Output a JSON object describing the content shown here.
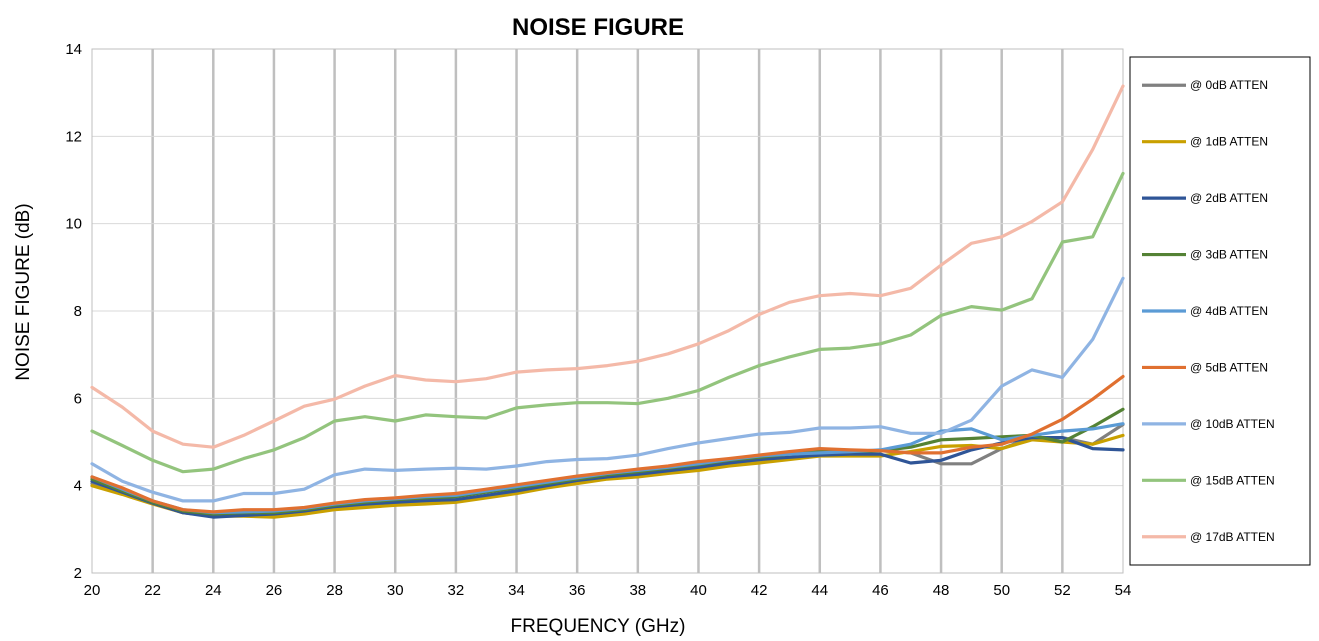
{
  "chart_data": {
    "type": "line",
    "title": "NOISE FIGURE",
    "xlabel": "FREQUENCY (GHz)",
    "ylabel": "NOISE FIGURE (dB)",
    "xlim": [
      20,
      54
    ],
    "ylim": [
      2,
      14
    ],
    "x_ticks": [
      20,
      22,
      24,
      26,
      28,
      30,
      32,
      34,
      36,
      38,
      40,
      42,
      44,
      46,
      48,
      50,
      52,
      54
    ],
    "y_ticks": [
      2,
      4,
      6,
      8,
      10,
      12,
      14
    ],
    "vertical_grid": true,
    "horizontal_grid": true,
    "legend_position": "right",
    "x": [
      20,
      21,
      22,
      23,
      24,
      25,
      26,
      27,
      28,
      29,
      30,
      31,
      32,
      33,
      34,
      35,
      36,
      37,
      38,
      39,
      40,
      41,
      42,
      43,
      44,
      45,
      46,
      47,
      48,
      49,
      50,
      51,
      52,
      53,
      54
    ],
    "series": [
      {
        "name": "@ 0dB ATTEN",
        "color": "#808080",
        "values": [
          4.05,
          3.85,
          3.6,
          3.38,
          3.3,
          3.35,
          3.35,
          3.4,
          3.5,
          3.55,
          3.6,
          3.62,
          3.65,
          3.75,
          3.85,
          3.98,
          4.1,
          4.18,
          4.22,
          4.3,
          4.38,
          4.48,
          4.55,
          4.62,
          4.7,
          4.75,
          4.8,
          4.75,
          4.5,
          4.5,
          4.85,
          5.1,
          5.1,
          4.95,
          5.4
        ]
      },
      {
        "name": "@ 1dB ATTEN",
        "color": "#C9A000",
        "values": [
          4.0,
          3.8,
          3.58,
          3.38,
          3.3,
          3.3,
          3.28,
          3.35,
          3.45,
          3.5,
          3.55,
          3.58,
          3.62,
          3.72,
          3.82,
          3.95,
          4.05,
          4.15,
          4.2,
          4.28,
          4.35,
          4.45,
          4.52,
          4.6,
          4.68,
          4.68,
          4.68,
          4.78,
          4.9,
          4.92,
          4.85,
          5.05,
          5.0,
          4.95,
          5.15
        ]
      },
      {
        "name": "@ 2dB ATTEN",
        "color": "#2F5597",
        "values": [
          4.1,
          3.85,
          3.6,
          3.38,
          3.28,
          3.32,
          3.35,
          3.42,
          3.52,
          3.58,
          3.62,
          3.66,
          3.68,
          3.78,
          3.88,
          4.0,
          4.12,
          4.2,
          4.26,
          4.34,
          4.42,
          4.52,
          4.6,
          4.65,
          4.7,
          4.72,
          4.72,
          4.52,
          4.58,
          4.82,
          4.98,
          5.1,
          5.1,
          4.85,
          4.82
        ]
      },
      {
        "name": "@ 3dB ATTEN",
        "color": "#548235",
        "values": [
          4.15,
          3.88,
          3.62,
          3.42,
          3.35,
          3.38,
          3.38,
          3.45,
          3.55,
          3.62,
          3.68,
          3.72,
          3.75,
          3.85,
          3.95,
          4.05,
          4.15,
          4.25,
          4.32,
          4.4,
          4.48,
          4.58,
          4.65,
          4.72,
          4.78,
          4.78,
          4.8,
          4.88,
          5.05,
          5.08,
          5.12,
          5.15,
          5.0,
          5.35,
          5.75
        ]
      },
      {
        "name": "@ 4dB ATTEN",
        "color": "#5B9BD5",
        "values": [
          4.2,
          3.92,
          3.65,
          3.45,
          3.38,
          3.4,
          3.42,
          3.48,
          3.58,
          3.65,
          3.7,
          3.75,
          3.78,
          3.88,
          3.98,
          4.08,
          4.18,
          4.28,
          4.35,
          4.42,
          4.5,
          4.6,
          4.68,
          4.72,
          4.75,
          4.78,
          4.82,
          4.95,
          5.25,
          5.3,
          5.05,
          5.15,
          5.25,
          5.3,
          5.42
        ]
      },
      {
        "name": "@ 5dB ATTEN",
        "color": "#E07030",
        "values": [
          4.2,
          3.95,
          3.65,
          3.45,
          3.4,
          3.45,
          3.45,
          3.5,
          3.6,
          3.68,
          3.72,
          3.78,
          3.82,
          3.92,
          4.02,
          4.12,
          4.22,
          4.3,
          4.38,
          4.45,
          4.55,
          4.62,
          4.7,
          4.78,
          4.85,
          4.82,
          4.8,
          4.75,
          4.75,
          4.88,
          4.95,
          5.18,
          5.52,
          5.98,
          6.5
        ]
      },
      {
        "name": "@ 10dB ATTEN",
        "color": "#8FB4E3",
        "values": [
          4.5,
          4.1,
          3.85,
          3.65,
          3.65,
          3.82,
          3.82,
          3.92,
          4.25,
          4.38,
          4.35,
          4.38,
          4.4,
          4.38,
          4.45,
          4.55,
          4.6,
          4.62,
          4.7,
          4.85,
          4.98,
          5.08,
          5.18,
          5.22,
          5.32,
          5.32,
          5.35,
          5.2,
          5.2,
          5.5,
          6.28,
          6.65,
          6.48,
          7.35,
          8.75
        ]
      },
      {
        "name": "@ 15dB ATTEN",
        "color": "#93C47D",
        "values": [
          5.25,
          4.92,
          4.58,
          4.32,
          4.38,
          4.62,
          4.82,
          5.1,
          5.48,
          5.58,
          5.48,
          5.62,
          5.58,
          5.55,
          5.78,
          5.85,
          5.9,
          5.9,
          5.88,
          6.0,
          6.18,
          6.48,
          6.75,
          6.95,
          7.12,
          7.15,
          7.25,
          7.45,
          7.9,
          8.1,
          8.02,
          8.28,
          9.58,
          9.7,
          11.15
        ]
      },
      {
        "name": "@ 17dB ATTEN",
        "color": "#F4B9A8",
        "values": [
          6.25,
          5.8,
          5.25,
          4.95,
          4.88,
          5.15,
          5.48,
          5.82,
          5.98,
          6.28,
          6.52,
          6.42,
          6.38,
          6.45,
          6.6,
          6.65,
          6.68,
          6.75,
          6.85,
          7.02,
          7.25,
          7.55,
          7.92,
          8.2,
          8.35,
          8.4,
          8.35,
          8.52,
          9.05,
          9.55,
          9.7,
          10.05,
          10.5,
          11.7,
          13.15
        ]
      }
    ]
  }
}
